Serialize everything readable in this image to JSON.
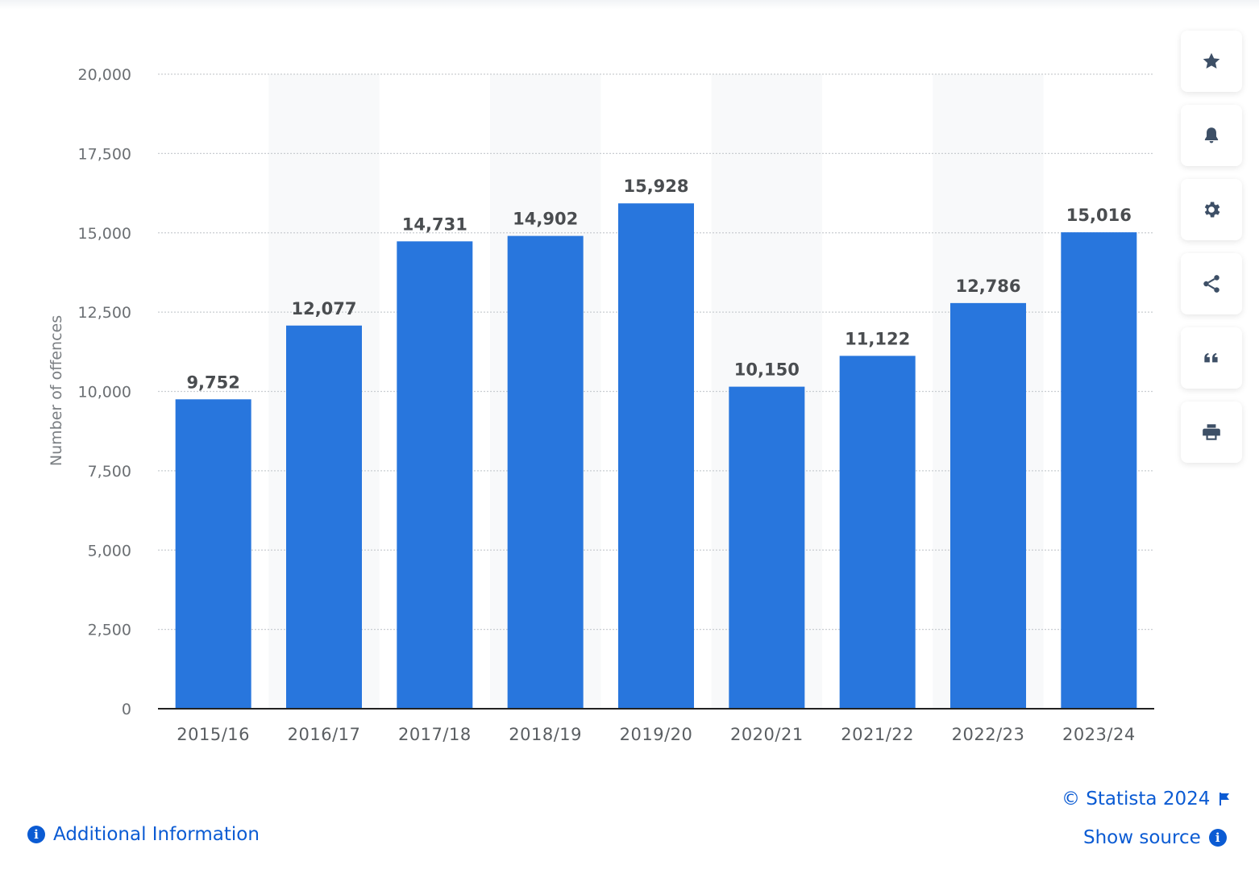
{
  "chart_data": {
    "type": "bar",
    "categories": [
      "2015/16",
      "2016/17",
      "2017/18",
      "2018/19",
      "2019/20",
      "2020/21",
      "2021/22",
      "2022/23",
      "2023/24"
    ],
    "values": [
      9752,
      12077,
      14731,
      14902,
      15928,
      10150,
      11122,
      12786,
      15016
    ],
    "value_labels": [
      "9,752",
      "12,077",
      "14,731",
      "14,902",
      "15,928",
      "10,150",
      "11,122",
      "12,786",
      "15,016"
    ],
    "ylabel": "Number of offences",
    "ylim": [
      0,
      20000
    ],
    "yticks": [
      0,
      2500,
      5000,
      7500,
      10000,
      12500,
      15000,
      17500,
      20000
    ],
    "ytick_labels": [
      "0",
      "2,500",
      "5,000",
      "7,500",
      "10,000",
      "12,500",
      "15,000",
      "17,500",
      "20,000"
    ],
    "grid": true,
    "bar_color": "#2876dd"
  },
  "toolbar": {
    "buttons": [
      {
        "icon": "star-icon"
      },
      {
        "icon": "bell-icon"
      },
      {
        "icon": "gear-icon"
      },
      {
        "icon": "share-icon"
      },
      {
        "icon": "quote-icon"
      },
      {
        "icon": "print-icon"
      }
    ]
  },
  "footer": {
    "copyright": "© Statista 2024",
    "show_source": "Show source",
    "additional_info": "Additional Information"
  },
  "colors": {
    "accent": "#0b5bd3",
    "icon": "#3d4f66"
  }
}
